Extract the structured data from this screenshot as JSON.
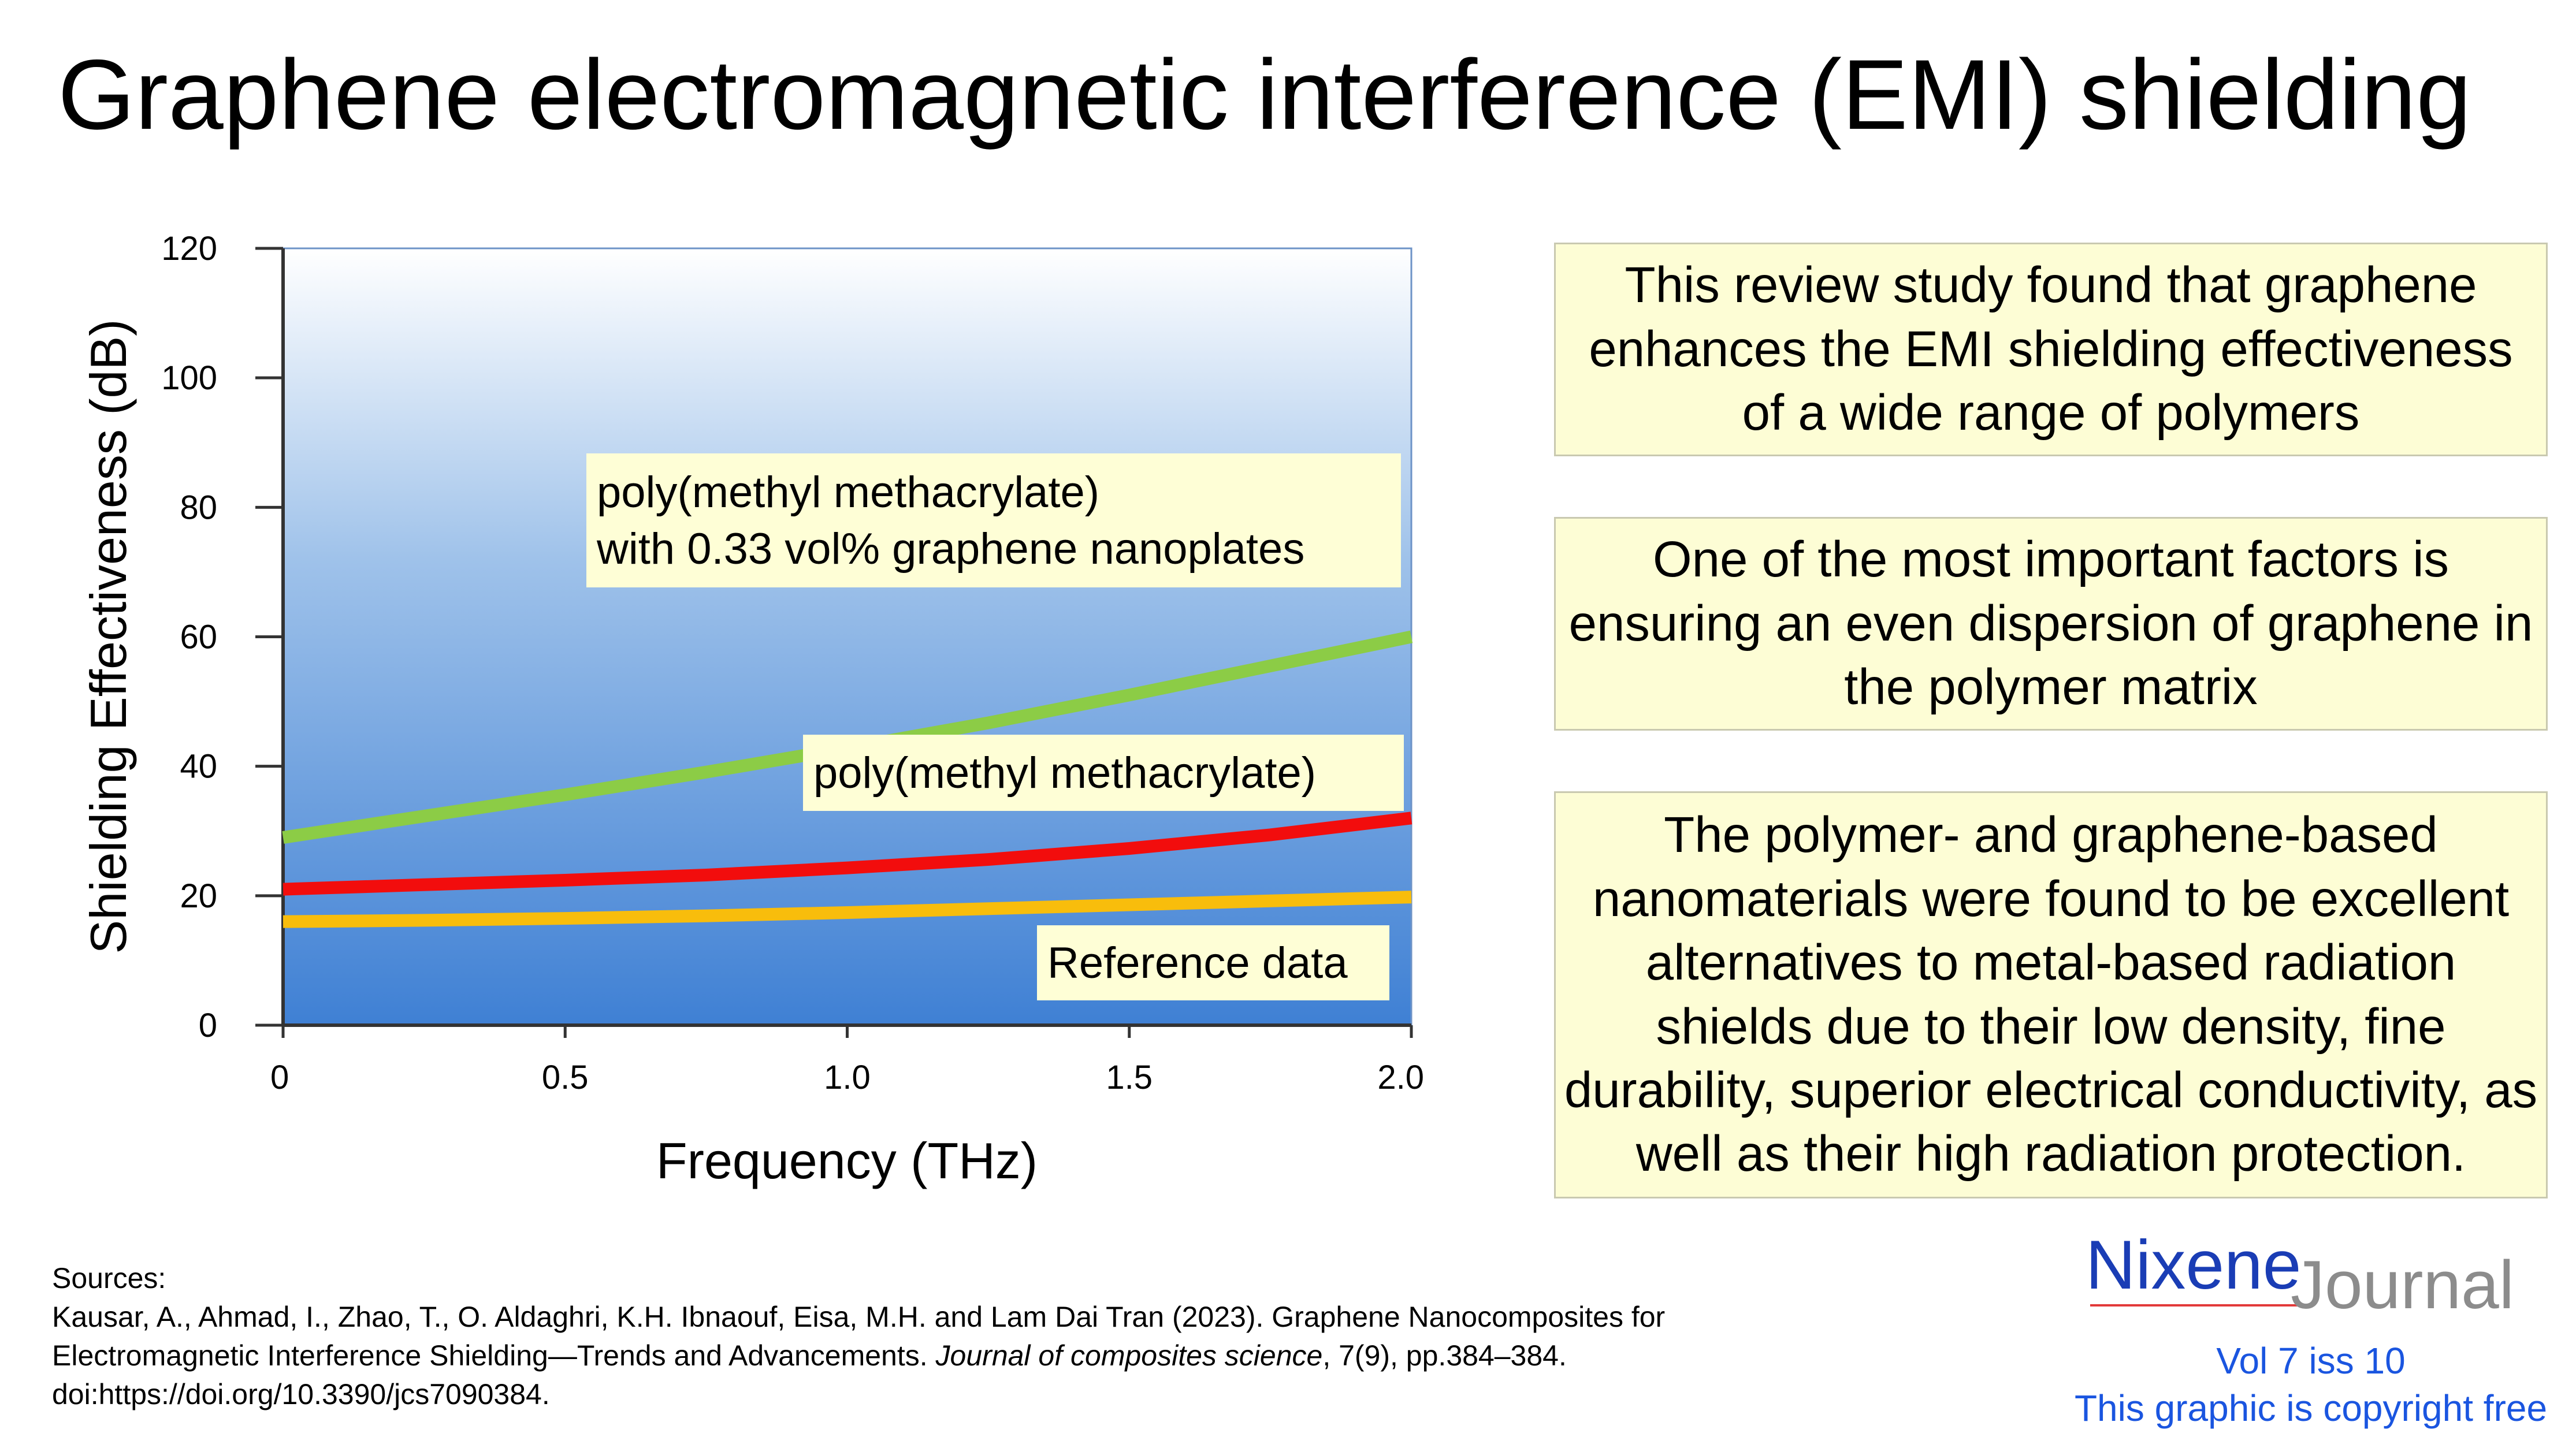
{
  "title": "Graphene electromagnetic interference (EMI) shielding",
  "chart_data": {
    "type": "line",
    "xlabel": "Frequency  (THz)",
    "ylabel": "Shielding Effectiveness  (dB)",
    "xlim": [
      0,
      2.0
    ],
    "ylim": [
      0,
      120
    ],
    "x_ticks": [
      {
        "value": 0,
        "label": "0"
      },
      {
        "value": 0.5,
        "label": "0.5"
      },
      {
        "value": 1.0,
        "label": "1.0"
      },
      {
        "value": 1.5,
        "label": "1.5"
      },
      {
        "value": 2.0,
        "label": "2.0"
      }
    ],
    "y_ticks": [
      {
        "value": 0,
        "label": "0"
      },
      {
        "value": 20,
        "label": "20"
      },
      {
        "value": 40,
        "label": "40"
      },
      {
        "value": 60,
        "label": "60"
      },
      {
        "value": 80,
        "label": "80"
      },
      {
        "value": 100,
        "label": "100"
      },
      {
        "value": 120,
        "label": "120"
      }
    ],
    "x": [
      0,
      0.25,
      0.5,
      0.75,
      1.0,
      1.25,
      1.5,
      1.75,
      2.0
    ],
    "series": [
      {
        "name": "poly(methyl methacrylate) with 0.33 vol% graphene nanoplates",
        "label_lines": [
          "poly(methyl methacrylate)",
          "with 0.33 vol% graphene nanoplates"
        ],
        "color": "#8ccc46",
        "values": [
          29,
          32.3,
          35.6,
          39.1,
          42.8,
          46.7,
          51,
          55.5,
          60
        ]
      },
      {
        "name": "poly(methyl methacrylate)",
        "label_lines": [
          "poly(methyl methacrylate)"
        ],
        "color": "#f20d0d",
        "values": [
          21,
          21.7,
          22.4,
          23.2,
          24.3,
          25.6,
          27.3,
          29.4,
          32
        ]
      },
      {
        "name": "Reference data",
        "label_lines": [
          "Reference data"
        ],
        "color": "#f8bd0c",
        "values": [
          16,
          16.2,
          16.5,
          16.9,
          17.4,
          18,
          18.6,
          19.2,
          19.8
        ]
      }
    ]
  },
  "notes": [
    "This review study found that graphene enhances the EMI shielding effectiveness of a wide range of polymers",
    "One of the most important factors is ensuring an even dispersion of graphene in the polymer matrix",
    "The polymer- and graphene-based nanomaterials were found to be excellent alternatives to metal-based radiation shields due to their low density, fine durability, superior electrical conductivity, as well as their high radiation protection."
  ],
  "sources": {
    "heading": "Sources:",
    "line1": "Kausar, A., Ahmad, I., Zhao, T., O. Aldaghri, K.H. Ibnaouf, Eisa, M.H. and Lam Dai Tran (2023). Graphene Nanocomposites for",
    "line2_pre": "Electromagnetic Interference Shielding—Trends and Advancements. ",
    "line2_journal": "Journal of composites science",
    "line2_post": ", 7(9), pp.384–384.",
    "line3": "doi:https://doi.org/10.3390/jcs7090384."
  },
  "logo": {
    "brand": "Nixene",
    "sub": "Journal"
  },
  "issue": "Vol 7 iss 10",
  "copyright": "This graphic is copyright free"
}
